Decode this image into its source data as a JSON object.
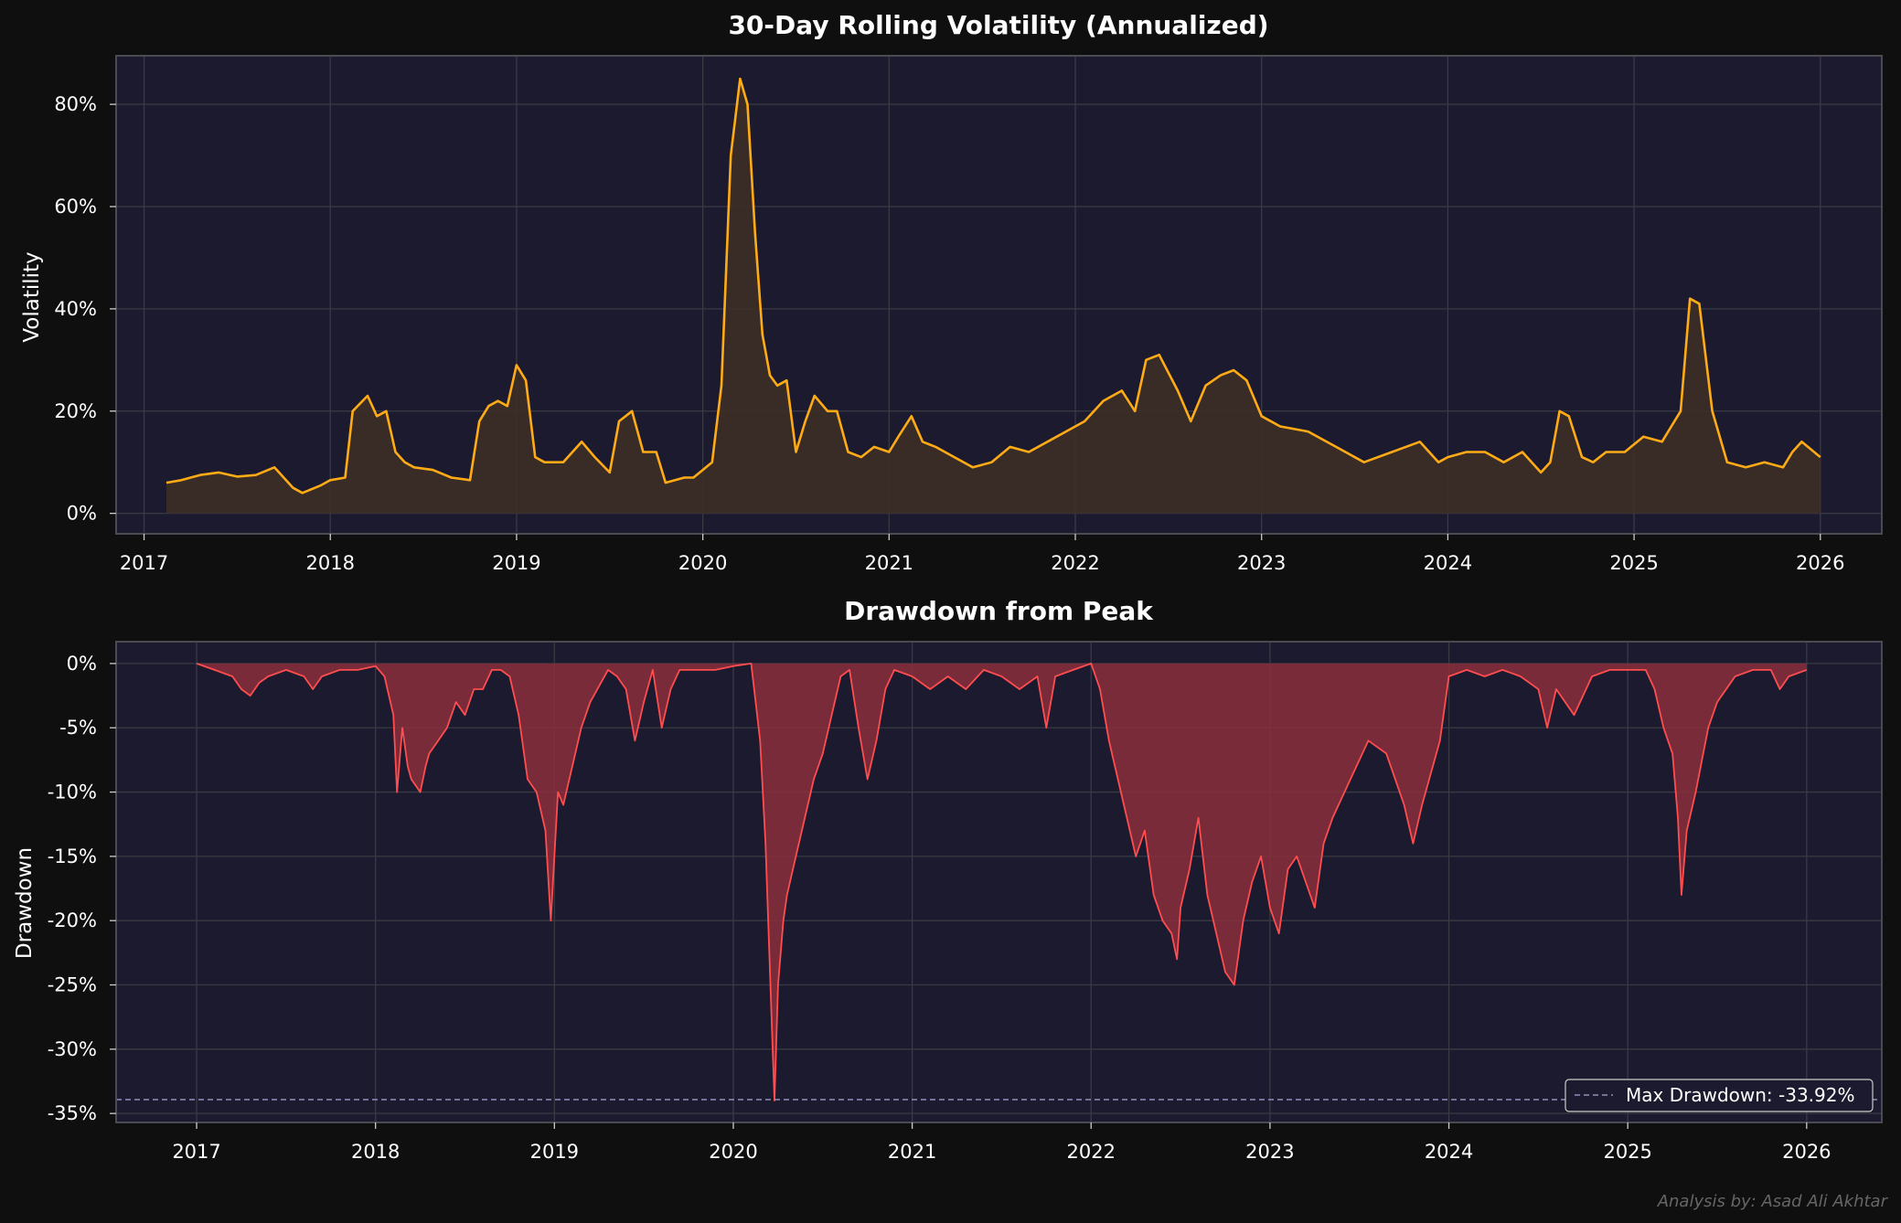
{
  "credit": "Analysis by: Asad Ali Akhtar",
  "colors": {
    "background": "#0f0f0f",
    "plot_bg": "#1b1a2e",
    "grid": "#3a3a44",
    "volatility_line": "#ffab16",
    "volatility_fill": "#3d2f26",
    "drawdown_line": "#ff4d4f",
    "drawdown_fill": "#8a2f3b",
    "max_dd_line": "#8f90b8"
  },
  "chart_data": [
    {
      "type": "area",
      "title": "30-Day Rolling Volatility (Annualized)",
      "xlabel": "",
      "ylabel": "Volatility",
      "xlim": [
        2016.85,
        2026.33
      ],
      "ylim": [
        -0.04,
        0.895
      ],
      "xticks": [
        2017,
        2018,
        2019,
        2020,
        2021,
        2022,
        2023,
        2024,
        2025,
        2026
      ],
      "xtick_labels": [
        "2017",
        "2018",
        "2019",
        "2020",
        "2021",
        "2022",
        "2023",
        "2024",
        "2025",
        "2026"
      ],
      "yticks": [
        0,
        0.2,
        0.4,
        0.6,
        0.8
      ],
      "ytick_labels": [
        "0%",
        "20%",
        "40%",
        "60%",
        "80%"
      ],
      "grid": true,
      "x": [
        2017.12,
        2017.2,
        2017.3,
        2017.4,
        2017.5,
        2017.6,
        2017.7,
        2017.8,
        2017.85,
        2017.95,
        2018.0,
        2018.08,
        2018.12,
        2018.2,
        2018.25,
        2018.3,
        2018.35,
        2018.4,
        2018.45,
        2018.55,
        2018.65,
        2018.75,
        2018.8,
        2018.85,
        2018.9,
        2018.95,
        2019.0,
        2019.05,
        2019.1,
        2019.15,
        2019.25,
        2019.35,
        2019.42,
        2019.5,
        2019.55,
        2019.62,
        2019.68,
        2019.75,
        2019.8,
        2019.9,
        2019.95,
        2020.05,
        2020.1,
        2020.15,
        2020.2,
        2020.24,
        2020.28,
        2020.32,
        2020.36,
        2020.4,
        2020.45,
        2020.5,
        2020.55,
        2020.6,
        2020.67,
        2020.72,
        2020.78,
        2020.85,
        2020.92,
        2021.0,
        2021.05,
        2021.12,
        2021.18,
        2021.25,
        2021.35,
        2021.45,
        2021.55,
        2021.65,
        2021.75,
        2021.85,
        2021.95,
        2022.05,
        2022.15,
        2022.25,
        2022.32,
        2022.38,
        2022.45,
        2022.55,
        2022.62,
        2022.7,
        2022.78,
        2022.85,
        2022.92,
        2023.0,
        2023.1,
        2023.25,
        2023.4,
        2023.55,
        2023.7,
        2023.85,
        2023.95,
        2024.0,
        2024.1,
        2024.2,
        2024.3,
        2024.4,
        2024.5,
        2024.55,
        2024.6,
        2024.65,
        2024.72,
        2024.78,
        2024.85,
        2024.95,
        2025.05,
        2025.15,
        2025.2,
        2025.25,
        2025.3,
        2025.35,
        2025.42,
        2025.5,
        2025.6,
        2025.7,
        2025.8,
        2025.85,
        2025.9,
        2026.0
      ],
      "series": [
        {
          "values": [
            0.06,
            0.065,
            0.075,
            0.08,
            0.072,
            0.075,
            0.09,
            0.05,
            0.04,
            0.055,
            0.065,
            0.07,
            0.2,
            0.23,
            0.19,
            0.2,
            0.12,
            0.1,
            0.09,
            0.085,
            0.07,
            0.065,
            0.18,
            0.21,
            0.22,
            0.21,
            0.29,
            0.26,
            0.11,
            0.1,
            0.1,
            0.14,
            0.11,
            0.08,
            0.18,
            0.2,
            0.12,
            0.12,
            0.06,
            0.07,
            0.07,
            0.1,
            0.25,
            0.7,
            0.85,
            0.8,
            0.55,
            0.35,
            0.27,
            0.25,
            0.26,
            0.12,
            0.18,
            0.23,
            0.2,
            0.2,
            0.12,
            0.11,
            0.13,
            0.12,
            0.15,
            0.19,
            0.14,
            0.13,
            0.11,
            0.09,
            0.1,
            0.13,
            0.12,
            0.14,
            0.16,
            0.18,
            0.22,
            0.24,
            0.2,
            0.3,
            0.31,
            0.24,
            0.18,
            0.25,
            0.27,
            0.28,
            0.26,
            0.19,
            0.17,
            0.16,
            0.13,
            0.1,
            0.12,
            0.14,
            0.1,
            0.11,
            0.12,
            0.12,
            0.1,
            0.12,
            0.08,
            0.1,
            0.2,
            0.19,
            0.11,
            0.1,
            0.12,
            0.12,
            0.15,
            0.14,
            0.17,
            0.2,
            0.42,
            0.41,
            0.2,
            0.1,
            0.09,
            0.1,
            0.09,
            0.12,
            0.14,
            0.11
          ]
        }
      ]
    },
    {
      "type": "area",
      "title": "Drawdown from Peak",
      "xlabel": "",
      "ylabel": "Drawdown",
      "xlim": [
        2016.55,
        2026.42
      ],
      "ylim": [
        -0.357,
        0.017
      ],
      "xticks": [
        2017,
        2018,
        2019,
        2020,
        2021,
        2022,
        2023,
        2024,
        2025,
        2026
      ],
      "xtick_labels": [
        "2017",
        "2018",
        "2019",
        "2020",
        "2021",
        "2022",
        "2023",
        "2024",
        "2025",
        "2026"
      ],
      "yticks": [
        0,
        -0.05,
        -0.1,
        -0.15,
        -0.2,
        -0.25,
        -0.3,
        -0.35
      ],
      "ytick_labels": [
        "0%",
        "-5%",
        "-10%",
        "-15%",
        "-20%",
        "-25%",
        "-30%",
        "-35%"
      ],
      "grid": true,
      "legend": {
        "position": "lower-right",
        "entries": [
          "Max Drawdown: -33.92%"
        ]
      },
      "max_drawdown_line": -0.3392,
      "x": [
        2017.0,
        2017.1,
        2017.2,
        2017.25,
        2017.3,
        2017.35,
        2017.4,
        2017.5,
        2017.6,
        2017.65,
        2017.7,
        2017.8,
        2017.9,
        2018.0,
        2018.05,
        2018.1,
        2018.12,
        2018.15,
        2018.18,
        2018.2,
        2018.25,
        2018.28,
        2018.3,
        2018.35,
        2018.4,
        2018.45,
        2018.5,
        2018.55,
        2018.6,
        2018.65,
        2018.7,
        2018.75,
        2018.8,
        2018.85,
        2018.9,
        2018.95,
        2018.98,
        2019.0,
        2019.02,
        2019.05,
        2019.1,
        2019.15,
        2019.2,
        2019.3,
        2019.35,
        2019.4,
        2019.45,
        2019.5,
        2019.55,
        2019.6,
        2019.65,
        2019.7,
        2019.8,
        2019.9,
        2020.0,
        2020.1,
        2020.15,
        2020.18,
        2020.2,
        2020.22,
        2020.23,
        2020.25,
        2020.28,
        2020.3,
        2020.35,
        2020.4,
        2020.45,
        2020.5,
        2020.55,
        2020.6,
        2020.65,
        2020.7,
        2020.75,
        2020.8,
        2020.85,
        2020.9,
        2021.0,
        2021.1,
        2021.2,
        2021.3,
        2021.4,
        2021.5,
        2021.6,
        2021.7,
        2021.75,
        2021.8,
        2021.9,
        2022.0,
        2022.05,
        2022.1,
        2022.15,
        2022.2,
        2022.25,
        2022.3,
        2022.35,
        2022.4,
        2022.45,
        2022.48,
        2022.5,
        2022.55,
        2022.6,
        2022.65,
        2022.7,
        2022.75,
        2022.8,
        2022.85,
        2022.9,
        2022.95,
        2023.0,
        2023.05,
        2023.1,
        2023.15,
        2023.2,
        2023.25,
        2023.3,
        2023.35,
        2023.45,
        2023.55,
        2023.65,
        2023.75,
        2023.8,
        2023.85,
        2023.95,
        2024.0,
        2024.1,
        2024.2,
        2024.3,
        2024.4,
        2024.5,
        2024.55,
        2024.6,
        2024.7,
        2024.8,
        2024.9,
        2025.0,
        2025.1,
        2025.15,
        2025.2,
        2025.25,
        2025.28,
        2025.3,
        2025.33,
        2025.38,
        2025.45,
        2025.5,
        2025.6,
        2025.7,
        2025.8,
        2025.85,
        2025.9,
        2026.0
      ],
      "series": [
        {
          "values": [
            0.0,
            -0.005,
            -0.01,
            -0.02,
            -0.025,
            -0.015,
            -0.01,
            -0.005,
            -0.01,
            -0.02,
            -0.01,
            -0.005,
            -0.005,
            -0.002,
            -0.01,
            -0.04,
            -0.1,
            -0.05,
            -0.08,
            -0.09,
            -0.1,
            -0.08,
            -0.07,
            -0.06,
            -0.05,
            -0.03,
            -0.04,
            -0.02,
            -0.02,
            -0.005,
            -0.005,
            -0.01,
            -0.04,
            -0.09,
            -0.1,
            -0.13,
            -0.2,
            -0.15,
            -0.1,
            -0.11,
            -0.08,
            -0.05,
            -0.03,
            -0.005,
            -0.01,
            -0.02,
            -0.06,
            -0.03,
            -0.005,
            -0.05,
            -0.02,
            -0.005,
            -0.005,
            -0.005,
            -0.002,
            -0.0,
            -0.06,
            -0.14,
            -0.22,
            -0.3,
            -0.34,
            -0.25,
            -0.2,
            -0.18,
            -0.15,
            -0.12,
            -0.09,
            -0.07,
            -0.04,
            -0.01,
            -0.005,
            -0.05,
            -0.09,
            -0.06,
            -0.02,
            -0.005,
            -0.01,
            -0.02,
            -0.01,
            -0.02,
            -0.005,
            -0.01,
            -0.02,
            -0.01,
            -0.05,
            -0.01,
            -0.005,
            -0.0,
            -0.02,
            -0.06,
            -0.09,
            -0.12,
            -0.15,
            -0.13,
            -0.18,
            -0.2,
            -0.21,
            -0.23,
            -0.19,
            -0.16,
            -0.12,
            -0.18,
            -0.21,
            -0.24,
            -0.25,
            -0.2,
            -0.17,
            -0.15,
            -0.19,
            -0.21,
            -0.16,
            -0.15,
            -0.17,
            -0.19,
            -0.14,
            -0.12,
            -0.09,
            -0.06,
            -0.07,
            -0.11,
            -0.14,
            -0.11,
            -0.06,
            -0.01,
            -0.005,
            -0.01,
            -0.005,
            -0.01,
            -0.02,
            -0.05,
            -0.02,
            -0.04,
            -0.01,
            -0.005,
            -0.005,
            -0.005,
            -0.02,
            -0.05,
            -0.07,
            -0.12,
            -0.18,
            -0.13,
            -0.1,
            -0.05,
            -0.03,
            -0.01,
            -0.005,
            -0.005,
            -0.02,
            -0.01,
            -0.005
          ]
        }
      ]
    }
  ]
}
